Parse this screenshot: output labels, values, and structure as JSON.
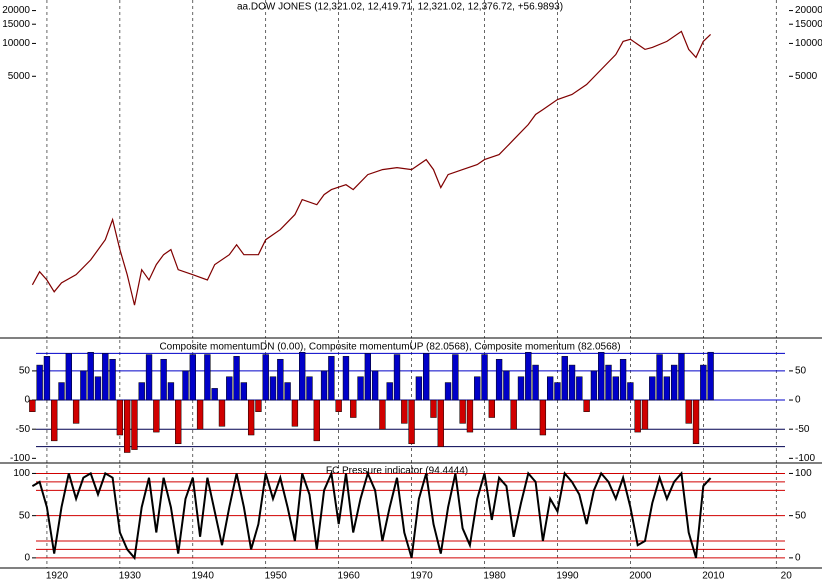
{
  "chart_data": [
    {
      "type": "line",
      "title": "aa.DOW JONES (12,321.02, 12,419.71, 12,321.02, 12,376.72, +56.9893)",
      "log_scale": true,
      "color": "#800000",
      "x": [
        1918,
        1919,
        1920,
        1921,
        1922,
        1924,
        1926,
        1928,
        1929,
        1930,
        1931,
        1932,
        1933,
        1934,
        1935,
        1936,
        1937,
        1938,
        1940,
        1942,
        1943,
        1945,
        1946,
        1947,
        1949,
        1950,
        1952,
        1954,
        1955,
        1957,
        1958,
        1959,
        1961,
        1962,
        1964,
        1966,
        1968,
        1970,
        1972,
        1973,
        1974,
        1975,
        1977,
        1979,
        1980,
        1982,
        1984,
        1986,
        1987,
        1988,
        1990,
        1992,
        1994,
        1996,
        1998,
        1999,
        2000,
        2002,
        2003,
        2005,
        2007,
        2008,
        2009,
        2010,
        2011
      ],
      "values": [
        61.5,
        81,
        68,
        53,
        64,
        76,
        104,
        159,
        243,
        129,
        76,
        40,
        84.5,
        68,
        94,
        116,
        129,
        84.5,
        76,
        68,
        94,
        116,
        143,
        116,
        116,
        159,
        197,
        270,
        371,
        333,
        412,
        458,
        508,
        458,
        628,
        698,
        728,
        698,
        863,
        698,
        478,
        628,
        698,
        776,
        863,
        959,
        1316,
        1807,
        2234,
        2478,
        3063,
        3404,
        4207,
        5770,
        7925,
        10430,
        10920,
        8810,
        9190,
        10430,
        12880,
        8810,
        7440,
        10430,
        12100
      ],
      "ylim": [
        20,
        25000
      ],
      "yticks": [
        20000,
        15000,
        10000,
        5000
      ]
    },
    {
      "type": "bar",
      "title": "Composite momentumDN (0.00), Composite momentumUP (82.0568), Composite momentum (82.0568)",
      "color": "#0000c8",
      "negative_color": "#d00000",
      "x": [
        1918,
        1919,
        1920,
        1921,
        1922,
        1923,
        1924,
        1925,
        1926,
        1927,
        1928,
        1929,
        1930,
        1931,
        1932,
        1933,
        1934,
        1935,
        1936,
        1937,
        1938,
        1939,
        1940,
        1941,
        1942,
        1943,
        1944,
        1945,
        1946,
        1947,
        1948,
        1949,
        1950,
        1951,
        1952,
        1953,
        1954,
        1955,
        1956,
        1957,
        1958,
        1959,
        1960,
        1961,
        1962,
        1963,
        1964,
        1965,
        1966,
        1967,
        1968,
        1969,
        1970,
        1971,
        1972,
        1973,
        1974,
        1975,
        1976,
        1977,
        1978,
        1979,
        1980,
        1981,
        1982,
        1983,
        1984,
        1985,
        1986,
        1987,
        1988,
        1989,
        1990,
        1991,
        1992,
        1993,
        1994,
        1995,
        1996,
        1997,
        1998,
        1999,
        2000,
        2001,
        2002,
        2003,
        2004,
        2005,
        2006,
        2007,
        2008,
        2009,
        2010,
        2011
      ],
      "values": [
        -20,
        60,
        75,
        -70,
        30,
        80,
        -40,
        50,
        82,
        40,
        80,
        70,
        -60,
        -90,
        -85,
        30,
        78,
        -55,
        70,
        30,
        -75,
        50,
        78,
        -50,
        78,
        20,
        -45,
        40,
        75,
        30,
        -60,
        -20,
        78,
        40,
        70,
        30,
        -45,
        82,
        40,
        -70,
        50,
        75,
        -20,
        75,
        -30,
        40,
        80,
        50,
        -50,
        30,
        78,
        -40,
        -75,
        40,
        80,
        -30,
        -80,
        30,
        78,
        -40,
        -55,
        40,
        78,
        -30,
        70,
        50,
        -50,
        40,
        82,
        60,
        -60,
        40,
        30,
        75,
        60,
        40,
        -20,
        50,
        82,
        60,
        40,
        70,
        30,
        -55,
        -50,
        40,
        78,
        40,
        60,
        80,
        -40,
        -75,
        60,
        82.0568
      ],
      "levels": [
        80,
        50,
        0,
        -50,
        -80
      ],
      "level_colors": [
        "#0000c8",
        "#0000c8",
        "#0000c8",
        "#000050",
        "#000050"
      ],
      "ylim": [
        -108,
        103
      ],
      "yticks": [
        50,
        0,
        -50,
        -100
      ]
    },
    {
      "type": "line",
      "title": "FC Pressure indicator (94.4444)",
      "color": "#000000",
      "x": [
        1918,
        1919,
        1920,
        1921,
        1922,
        1923,
        1924,
        1925,
        1926,
        1927,
        1928,
        1929,
        1930,
        1931,
        1932,
        1933,
        1934,
        1935,
        1936,
        1937,
        1938,
        1939,
        1940,
        1941,
        1942,
        1943,
        1944,
        1945,
        1946,
        1947,
        1948,
        1949,
        1950,
        1951,
        1952,
        1953,
        1954,
        1955,
        1956,
        1957,
        1958,
        1959,
        1960,
        1961,
        1962,
        1963,
        1964,
        1965,
        1966,
        1967,
        1968,
        1969,
        1970,
        1971,
        1972,
        1973,
        1974,
        1975,
        1976,
        1977,
        1978,
        1979,
        1980,
        1981,
        1982,
        1983,
        1984,
        1985,
        1986,
        1987,
        1988,
        1989,
        1990,
        1991,
        1992,
        1993,
        1994,
        1995,
        1996,
        1997,
        1998,
        1999,
        2000,
        2001,
        2002,
        2003,
        2004,
        2005,
        2006,
        2007,
        2008,
        2009,
        2010,
        2011
      ],
      "values": [
        85,
        90,
        60,
        5,
        60,
        100,
        70,
        95,
        100,
        75,
        100,
        95,
        30,
        10,
        0,
        60,
        95,
        30,
        95,
        60,
        5,
        70,
        95,
        25,
        95,
        55,
        15,
        60,
        100,
        60,
        10,
        40,
        100,
        70,
        95,
        60,
        20,
        100,
        75,
        10,
        80,
        100,
        40,
        100,
        30,
        70,
        100,
        80,
        20,
        60,
        95,
        30,
        0,
        70,
        100,
        40,
        5,
        60,
        100,
        35,
        15,
        70,
        100,
        45,
        95,
        85,
        25,
        65,
        100,
        90,
        20,
        70,
        55,
        100,
        90,
        75,
        40,
        80,
        100,
        90,
        70,
        95,
        60,
        15,
        20,
        65,
        95,
        70,
        90,
        100,
        30,
        0,
        85,
        94.4444
      ],
      "levels": [
        100,
        90,
        80,
        50,
        20,
        10,
        0
      ],
      "level_color": "#d00000",
      "ylim": [
        -12,
        110
      ],
      "yticks": [
        100,
        50,
        0
      ],
      "xlim": [
        1918.5,
        2021.2
      ],
      "xticks": [
        1920,
        1930,
        1940,
        1950,
        1960,
        1970,
        1980,
        1990,
        2000,
        2010,
        {
          "value": 2020,
          "label": "20"
        }
      ]
    }
  ]
}
